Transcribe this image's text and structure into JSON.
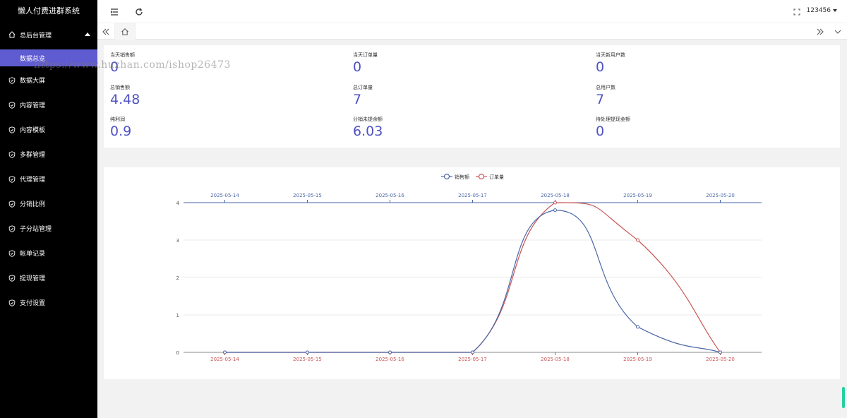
{
  "sidebar": {
    "app_title": "懒人付费进群系统",
    "group": {
      "label": "总后台管理",
      "icon": "home-icon"
    },
    "active_item": "数据总览",
    "items": [
      {
        "label": "数据大屏",
        "icon": "shield-check-icon"
      },
      {
        "label": "内容管理",
        "icon": "shield-check-icon"
      },
      {
        "label": "内容模板",
        "icon": "shield-check-icon"
      },
      {
        "label": "多群管理",
        "icon": "shield-check-icon"
      },
      {
        "label": "代理管理",
        "icon": "shield-check-icon"
      },
      {
        "label": "分销比例",
        "icon": "shield-check-icon"
      },
      {
        "label": "子分站管理",
        "icon": "shield-check-icon"
      },
      {
        "label": "帐单记录",
        "icon": "shield-check-icon"
      },
      {
        "label": "提现管理",
        "icon": "shield-check-icon"
      },
      {
        "label": "支付设置",
        "icon": "shield-check-icon"
      }
    ]
  },
  "header": {
    "username": "123456"
  },
  "watermark": "https://www.huzhan.com/ishop26473",
  "stats": [
    {
      "label": "当天销售额",
      "value": "0"
    },
    {
      "label": "当天订单量",
      "value": "0"
    },
    {
      "label": "当天新用户数",
      "value": "0"
    },
    {
      "label": "总销售额",
      "value": "4.48"
    },
    {
      "label": "总订单量",
      "value": "7"
    },
    {
      "label": "总用户数",
      "value": "7"
    },
    {
      "label": "纯利润",
      "value": "0.9"
    },
    {
      "label": "分销未提余额",
      "value": "6.03"
    },
    {
      "label": "待处理提现金额",
      "value": "0"
    }
  ],
  "colors": {
    "accent": "#5f5bd1",
    "stat_value": "#4f52c4",
    "series_sales": "#4a67a6",
    "series_orders": "#c85656"
  },
  "chart_data": {
    "type": "line",
    "x": [
      "2025-05-14",
      "2025-05-15",
      "2025-05-16",
      "2025-05-17",
      "2025-05-18",
      "2025-05-19",
      "2025-05-20"
    ],
    "series": [
      {
        "name": "销售额",
        "values": [
          0,
          0,
          0,
          0,
          3.8,
          0.68,
          0
        ]
      },
      {
        "name": "订单量",
        "values": [
          0,
          0,
          0,
          0,
          4,
          3,
          0
        ]
      }
    ],
    "ylim": [
      0,
      4
    ],
    "yticks": [
      0,
      1,
      2,
      3,
      4
    ],
    "smooth": true,
    "legend_position": "top-center",
    "grid": true
  }
}
